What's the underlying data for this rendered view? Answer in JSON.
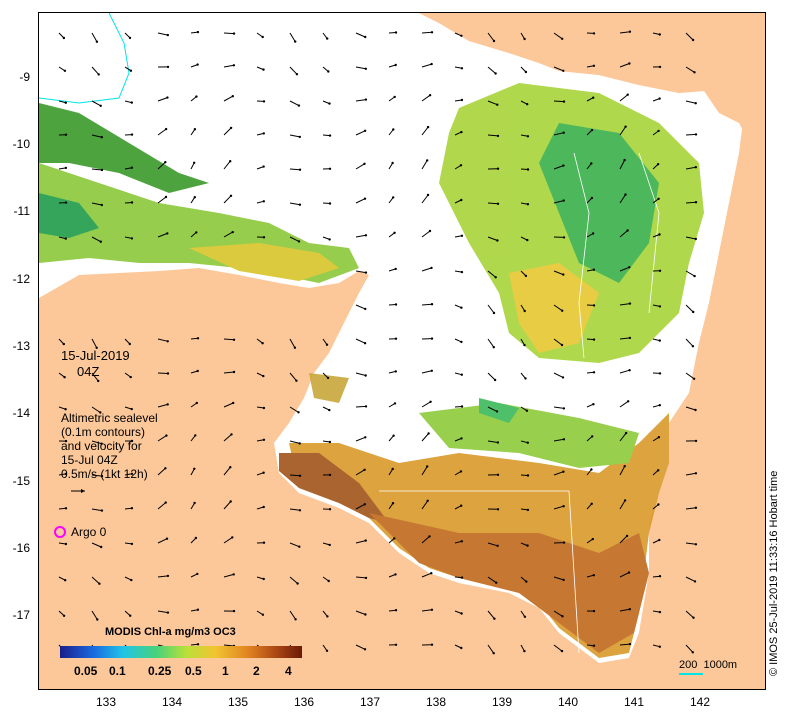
{
  "map": {
    "lat_labels": [
      "-9",
      "-10",
      "-11",
      "-12",
      "-13",
      "-14",
      "-15",
      "-16",
      "-17"
    ],
    "lon_labels": [
      "133",
      "134",
      "135",
      "136",
      "137",
      "138",
      "139",
      "140",
      "141",
      "142"
    ],
    "date": "15-Jul-2019",
    "time": "04Z",
    "legend_text": "Altimetric sealevel\n(0.1m contours)\nand velocity for\n15-Jul 04Z\n0.5m/s (1kt 12h)",
    "argo_label": "Argo 0",
    "scale_label": "200  1000m",
    "credit": "© IMOS 25-Jul-2019 11:33:16 Hobart time",
    "colorbar": {
      "title": "MODIS Chl-a mg/m3 OC3",
      "labels": [
        "0.05",
        "0.1",
        "0.25",
        "0.5",
        "1",
        "2",
        "4"
      ]
    },
    "colors": {
      "land": "#fcc89a",
      "sea_no_data": "#ffffff",
      "argo_marker": "#ff00ff",
      "contour": "#00e5e5"
    }
  }
}
